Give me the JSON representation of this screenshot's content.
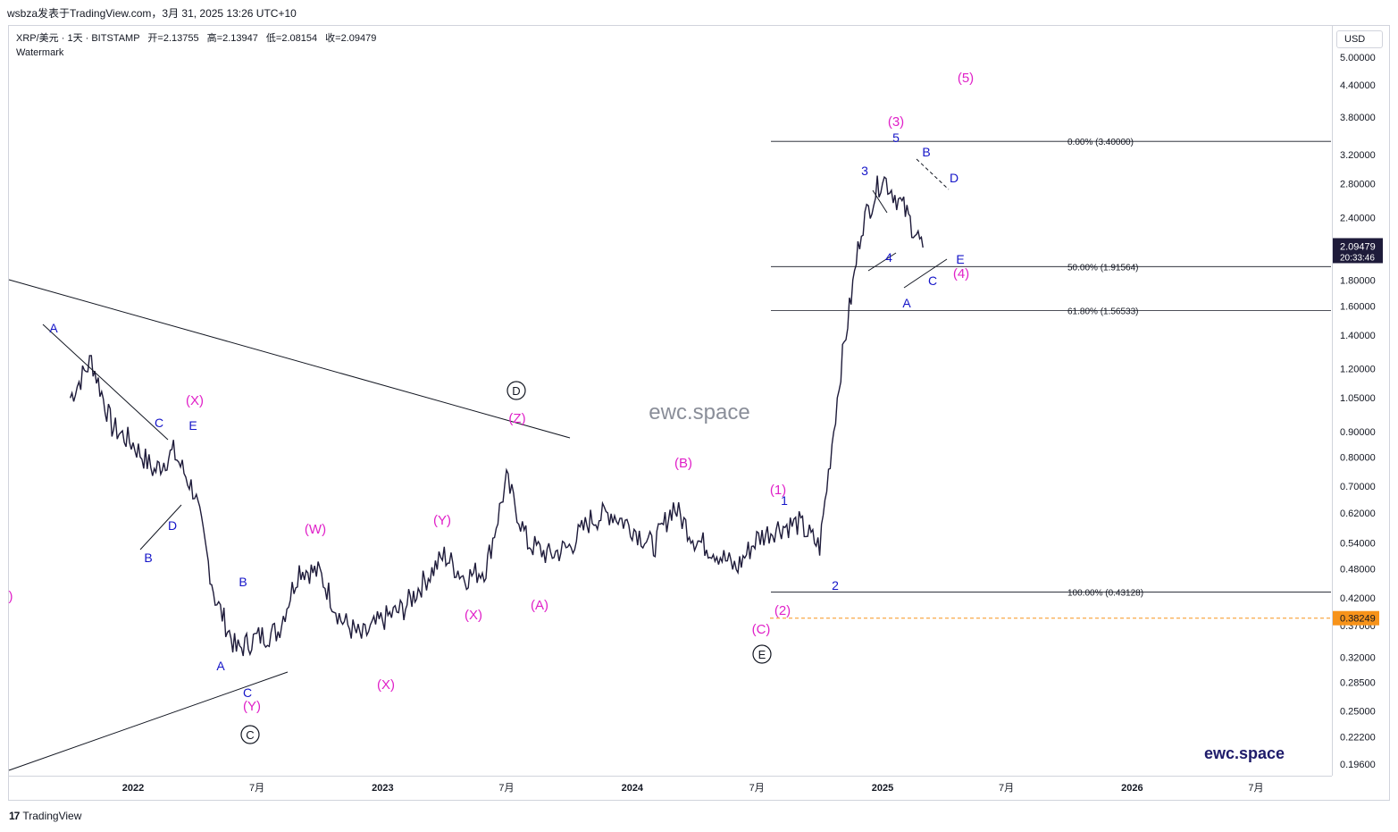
{
  "caption": "wsbza发表于TradingView.com，3月 31, 2025 13:26 UTC+10",
  "legend": {
    "symbol": "XRP/美元 · 1天 · BITSTAMP",
    "open_label": "开=2.13755",
    "high_label": "高=2.13947",
    "low_label": "低=2.08154",
    "close_label": "收=2.09479",
    "watermark": "Watermark"
  },
  "currency": "USD",
  "price_ticks": [
    "5.00000",
    "4.40000",
    "3.80000",
    "3.20000",
    "2.80000",
    "2.40000",
    "1.80000",
    "1.60000",
    "1.40000",
    "1.20000",
    "1.05000",
    "0.90000",
    "0.80000",
    "0.70000",
    "0.62000",
    "0.54000",
    "0.48000",
    "0.42000",
    "0.37000",
    "0.32000",
    "0.28500",
    "0.25000",
    "0.22200",
    "0.19600"
  ],
  "time_ticks": [
    "2022",
    "7月",
    "2023",
    "7月",
    "2024",
    "7月",
    "2025",
    "7月",
    "2026",
    "7月"
  ],
  "current_price": {
    "value": "2.09479",
    "countdown": "20:33:46",
    "color": "#1e1b3a"
  },
  "dashed_level": {
    "value": "0.38249",
    "color": "#f7931a"
  },
  "fib_labels": [
    "0.00% (3.40000)",
    "50.00% (1.91564)",
    "61.80% (1.56533)",
    "100.00% (0.43128)"
  ],
  "watermark_center": "ewc.space",
  "watermark_corner": "ewc.space",
  "footer_brand": "TradingView",
  "colors": {
    "candles": "#1e1b3a",
    "magenta": "#e020c8",
    "blue": "#1414c8",
    "black": "#131722"
  },
  "chart_data": {
    "type": "line",
    "title": "",
    "symbol": "XRP/USD",
    "interval": "1D",
    "exchange": "BITSTAMP",
    "scale": "log",
    "ylim": [
      0.18,
      5.6
    ],
    "x": [
      "2021-10",
      "2021-11",
      "2021-12",
      "2022-01",
      "2022-02",
      "2022-03",
      "2022-04",
      "2022-05",
      "2022-06",
      "2022-07",
      "2022-08",
      "2022-09",
      "2022-10",
      "2022-11",
      "2022-12",
      "2023-01",
      "2023-02",
      "2023-03",
      "2023-04",
      "2023-05",
      "2023-06",
      "2023-07",
      "2023-08",
      "2023-09",
      "2023-10",
      "2023-11",
      "2023-12",
      "2024-01",
      "2024-02",
      "2024-03",
      "2024-04",
      "2024-05",
      "2024-06",
      "2024-07",
      "2024-08",
      "2024-09",
      "2024-10",
      "2024-11",
      "2024-12",
      "2025-01",
      "2025-02",
      "2025-03"
    ],
    "series": [
      {
        "values": [
          1.05,
          1.25,
          0.92,
          0.85,
          0.75,
          0.82,
          0.68,
          0.42,
          0.33,
          0.35,
          0.36,
          0.48,
          0.47,
          0.38,
          0.35,
          0.38,
          0.4,
          0.45,
          0.51,
          0.46,
          0.48,
          0.72,
          0.54,
          0.51,
          0.53,
          0.6,
          0.62,
          0.58,
          0.53,
          0.64,
          0.55,
          0.52,
          0.48,
          0.55,
          0.58,
          0.59,
          0.53,
          1.2,
          2.3,
          2.9,
          2.5,
          2.09
        ]
      }
    ],
    "fib_levels": [
      {
        "label": "0.00%",
        "value": 3.4
      },
      {
        "label": "50.00%",
        "value": 1.91564
      },
      {
        "label": "61.80%",
        "value": 1.56533
      },
      {
        "label": "100.00%",
        "value": 0.43128
      }
    ],
    "wave_labels": {
      "magenta": [
        "(X)",
        "(W)",
        "(Y)",
        "(X)",
        "(Y)",
        "(X)",
        "(Z)",
        "(A)",
        "(B)",
        "(C)",
        "(1)",
        "(2)",
        "(3)",
        "(4)",
        "(5)",
        ")"
      ],
      "blue": [
        "A",
        "B",
        "C",
        "D",
        "E",
        "A",
        "B",
        "C",
        "1",
        "2",
        "3",
        "4",
        "5",
        "A",
        "B",
        "C",
        "D",
        "E"
      ],
      "circled": [
        "C",
        "D",
        "E"
      ]
    }
  }
}
